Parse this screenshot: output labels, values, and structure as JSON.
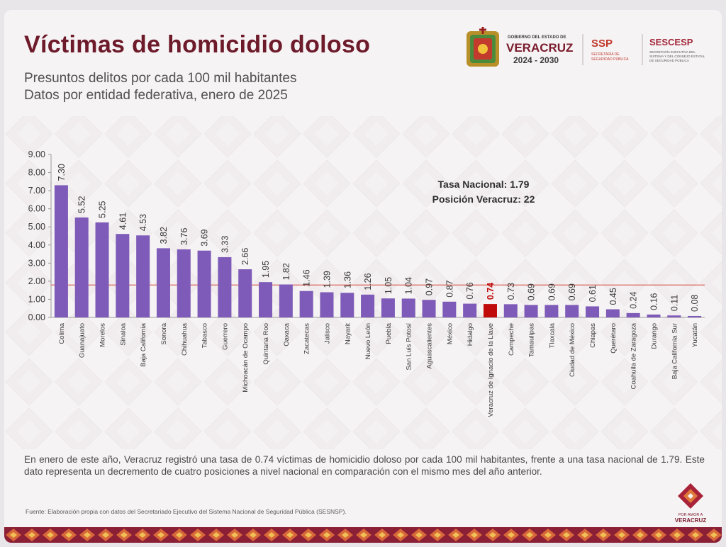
{
  "header": {
    "title": "Víctimas de homicidio doloso",
    "subtitle_1": "Presuntos delitos por cada 100 mil habitantes",
    "subtitle_2": "Datos por entidad federativa, enero de 2025"
  },
  "logos": {
    "gov_line1": "GOBIERNO DEL ESTADO DE",
    "gov_name": "VERACRUZ",
    "gov_years": "2024 - 2030",
    "ssp": "SSP",
    "ssp_sub1": "SECRETARÍA DE",
    "ssp_sub2": "SEGURIDAD PÚBLICA",
    "sescesp": "SESCESP",
    "sescesp_sub1": "SECRETARÍA EJECUTIVA DEL",
    "sescesp_sub2": "SISTEMA Y DEL CONSEJO ESTATAL",
    "sescesp_sub3": "DE SEGURIDAD PÚBLICA",
    "corner_line1": "POR AMOR A",
    "corner_line2": "VERACRUZ"
  },
  "annotation": {
    "line1": "Tasa Nacional: 1.79",
    "line2": "Posición Veracruz: 22"
  },
  "colors": {
    "bar": "#7e5bb8",
    "highlight": "#c00b0b",
    "reference_line": "#d9675e",
    "title": "#6d1a2a"
  },
  "chart_data": {
    "type": "bar",
    "title": "Víctimas de homicidio doloso",
    "categories": [
      "Colima",
      "Guanajuato",
      "Morelos",
      "Sinaloa",
      "Baja California",
      "Sonora",
      "Chihuahua",
      "Tabasco",
      "Guerrero",
      "Michoacán de Ocampo",
      "Quintana Roo",
      "Oaxaca",
      "Zacatecas",
      "Jalisco",
      "Nayarit",
      "Nuevo León",
      "Puebla",
      "San Luis Potosí",
      "Aguascalientes",
      "México",
      "Hidalgo",
      "Veracruz de Ignacio de la Llave",
      "Campeche",
      "Tamaulipas",
      "Tlaxcala",
      "Ciudad de México",
      "Chiapas",
      "Querétaro",
      "Coahuila de Zaragoza",
      "Durango",
      "Baja California Sur",
      "Yucatán"
    ],
    "values": [
      7.3,
      5.52,
      5.25,
      4.61,
      4.53,
      3.82,
      3.76,
      3.69,
      3.33,
      2.66,
      1.95,
      1.82,
      1.46,
      1.39,
      1.36,
      1.26,
      1.05,
      1.04,
      0.97,
      0.87,
      0.76,
      0.74,
      0.73,
      0.69,
      0.69,
      0.69,
      0.61,
      0.45,
      0.24,
      0.16,
      0.11,
      0.08
    ],
    "value_labels": [
      "7.30",
      "5.52",
      "5.25",
      "4.61",
      "4.53",
      "3.82",
      "3.76",
      "3.69",
      "3.33",
      "2.66",
      "1.95",
      "1.82",
      "1.46",
      "1.39",
      "1.36",
      "1.26",
      "1.05",
      "1.04",
      "0.97",
      "0.87",
      "0.76",
      "0.74",
      "0.73",
      "0.69",
      "0.69",
      "0.69",
      "0.61",
      "0.45",
      "0.24",
      "0.16",
      "0.11",
      "0.08"
    ],
    "highlight_category": "Veracruz de Ignacio de la Llave",
    "reference_value": 1.79,
    "ylim": [
      0,
      9
    ],
    "yticks": [
      "0.00",
      "1.00",
      "2.00",
      "3.00",
      "4.00",
      "5.00",
      "6.00",
      "7.00",
      "8.00",
      "9.00"
    ],
    "xlabel": "",
    "ylabel": "",
    "grid": false,
    "legend": "none"
  },
  "footer": {
    "text": "En enero de este año, Veracruz registró una tasa de 0.74 víctimas de homicidio doloso por cada 100 mil habitantes, frente a una tasa nacional de 1.79. Este dato representa un decremento de cuatro posiciones a nivel nacional en comparación con el mismo mes del año anterior.",
    "source": "Fuente: Elaboración propia con datos del Secretariado Ejecutivo del Sistema Nacional de Seguridad Pública (SESNSP)."
  }
}
